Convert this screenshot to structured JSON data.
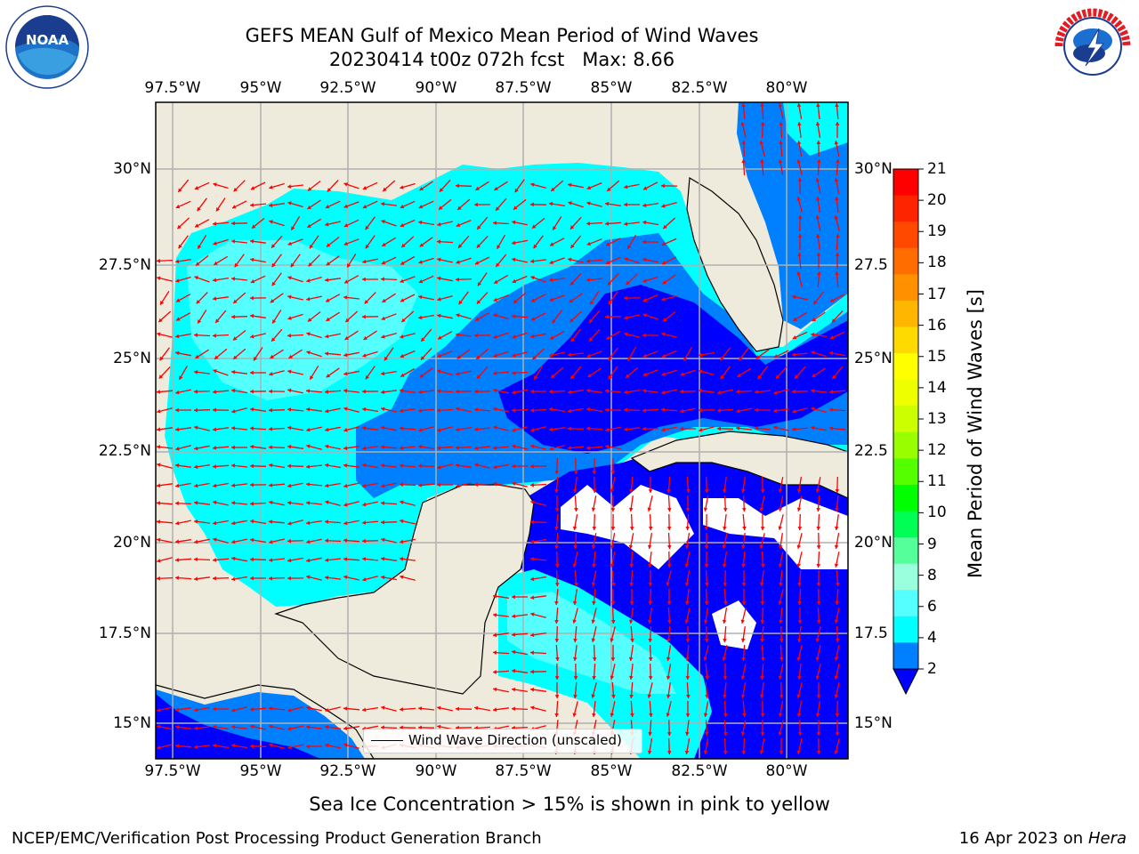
{
  "title": {
    "line1": "GEFS MEAN Gulf of Mexico Mean Period of Wind Waves",
    "line2": "20230414 t00z 072h fcst   Max: 8.66"
  },
  "logos": {
    "left": {
      "name": "noaa-logo",
      "text": "NOAA"
    },
    "right": {
      "name": "nws-logo",
      "text": "NATIONAL WEATHER SERVICE"
    }
  },
  "map": {
    "lon_ticks": [
      "97.5°W",
      "95°W",
      "92.5°W",
      "90°W",
      "87.5°W",
      "85°W",
      "82.5°W",
      "80°W"
    ],
    "lat_ticks_left": [
      "30°N",
      "27.5°N",
      "25°N",
      "22.5°N",
      "20°N",
      "17.5°N",
      "15°N"
    ],
    "lat_ticks_right": [
      "30°N",
      "27.5",
      "25°N",
      "22.5",
      "20°N",
      "17.5",
      "15°N"
    ],
    "legend": "Wind Wave Direction (unscaled)",
    "colors": {
      "land": "#efebdc",
      "ocean_2_4": "#0080ff",
      "ocean_4_6": "#00ffff",
      "ocean_6_8": "#55ffff",
      "ocean_lt2": "#0000ff",
      "arrow": "#ff0000",
      "grid": "#b0b0b0"
    }
  },
  "colorbar": {
    "label": "Mean Period of Wind Waves [s]",
    "ticks": [
      "21",
      "20",
      "19",
      "18",
      "17",
      "16",
      "15",
      "14",
      "13",
      "12",
      "11",
      "10",
      "9",
      "8",
      "6",
      "4",
      "2"
    ],
    "colors": [
      "#ff0000",
      "#ff2400",
      "#ff4800",
      "#ff6d00",
      "#ff9100",
      "#ffb600",
      "#ffda00",
      "#ffff00",
      "#eeff00",
      "#ccff00",
      "#99ff00",
      "#55ff00",
      "#00ff00",
      "#00ff55",
      "#55ff99",
      "#99ffdd",
      "#55ffff",
      "#00ffff",
      "#0080ff"
    ],
    "extend_color": "#0000ff"
  },
  "subtitle": "Sea Ice Concentration > 15% is shown in pink to yellow",
  "footer": {
    "left": "NCEP/EMC/Verification Post Processing Product Generation Branch",
    "right_prefix": "16 Apr 2023 on ",
    "right_host": "Hera"
  }
}
